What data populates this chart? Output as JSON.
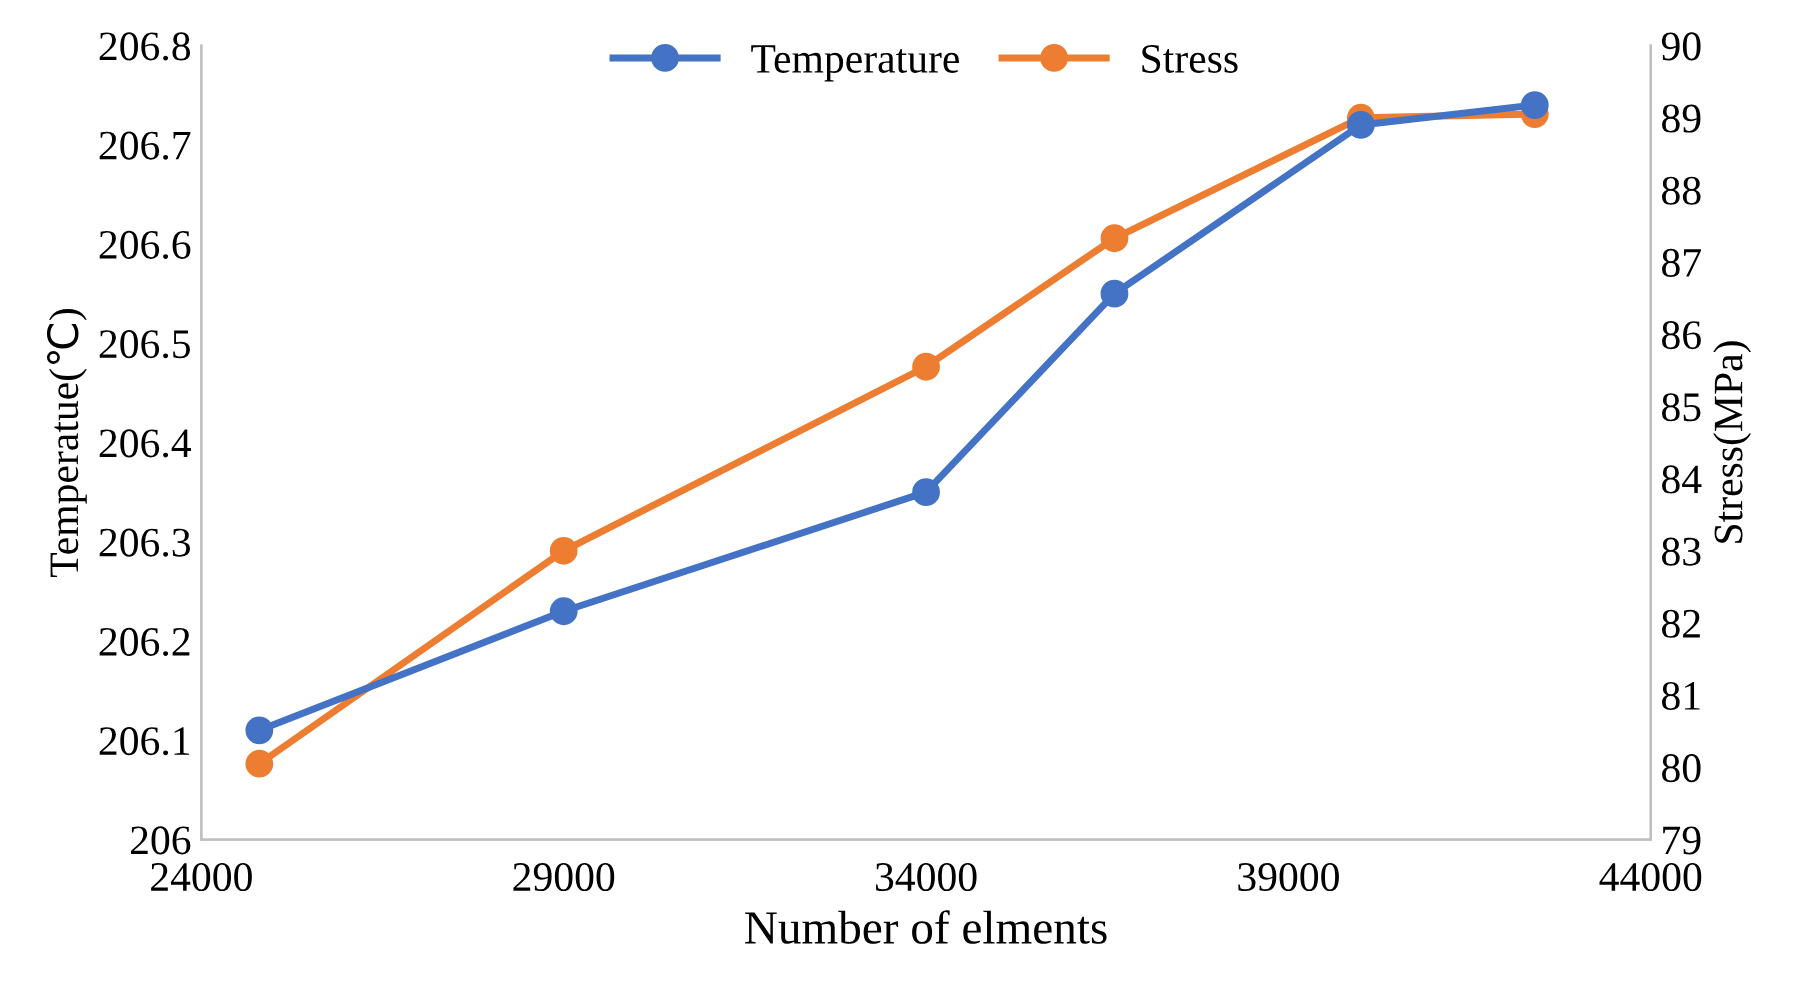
{
  "chart_data": {
    "type": "line",
    "xlabel": "Number of elments",
    "ylabel": "Temperatue(℃)",
    "y2label": "Stress(MPa)",
    "x": [
      24800,
      29000,
      34000,
      36600,
      40000,
      42400
    ],
    "series": [
      {
        "name": "Temperature",
        "color": "#4472c4",
        "values": [
          206.11,
          206.23,
          206.35,
          206.55,
          206.72,
          206.74
        ]
      },
      {
        "name": "Stress",
        "color": "#ed7d31",
        "axis": "y2",
        "values": [
          80.05,
          83.0,
          85.55,
          87.33,
          89.0,
          89.05
        ]
      }
    ],
    "xlim": [
      24000,
      44000
    ],
    "xticks": [
      24000,
      29000,
      34000,
      39000,
      44000
    ],
    "ylim": [
      206,
      206.8
    ],
    "yticks": [
      206,
      206.1,
      206.2,
      206.3,
      206.4,
      206.5,
      206.6,
      206.7,
      206.8
    ],
    "y2lim": [
      79,
      90
    ],
    "y2ticks": [
      79,
      80,
      81,
      82,
      83,
      84,
      85,
      86,
      87,
      88,
      89,
      90
    ],
    "marker": "circle",
    "line_style": "solid",
    "grid": false,
    "legend": "top"
  }
}
